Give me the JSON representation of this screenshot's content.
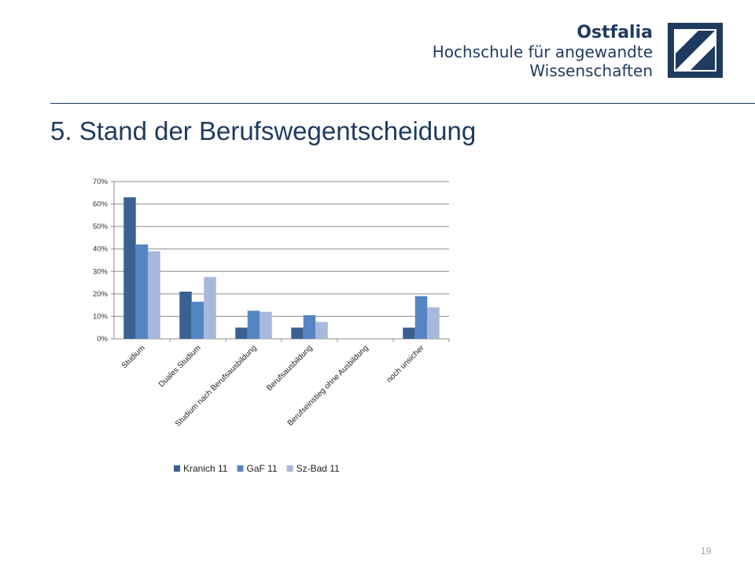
{
  "header": {
    "brand_name": "Ostfalia",
    "brand_line1": "Hochschule für angewandte",
    "brand_line2": "Wissenschaften",
    "brand_color": "#1f3a5f",
    "logo_icon": "ostfalia-logo"
  },
  "slide": {
    "title": "5. Stand der Berufswegentscheidung",
    "page_number": "19"
  },
  "chart_data": {
    "type": "bar",
    "categories": [
      "Studium",
      "Duales Studium",
      "Studium nach Berufsausbildung",
      "Berufsausbildung",
      "Berufseinstieg ohne Ausbildung",
      "noch unsicher"
    ],
    "series": [
      {
        "name": "Kranich 11",
        "color": "#3b6193",
        "values": [
          63,
          21,
          5,
          5,
          0,
          5
        ]
      },
      {
        "name": "GaF 11",
        "color": "#5585c3",
        "values": [
          42,
          16.5,
          12.5,
          10.5,
          0,
          19
        ]
      },
      {
        "name": "Sz-Bad 11",
        "color": "#a6b8dc",
        "values": [
          39,
          27.5,
          12,
          7.5,
          0,
          14
        ]
      }
    ],
    "yticks": [
      "0%",
      "10%",
      "20%",
      "30%",
      "40%",
      "50%",
      "60%",
      "70%"
    ],
    "ylim": [
      0,
      70
    ],
    "unit": "%",
    "grid": true,
    "legend_position": "bottom",
    "title": "",
    "xlabel": "",
    "ylabel": ""
  }
}
